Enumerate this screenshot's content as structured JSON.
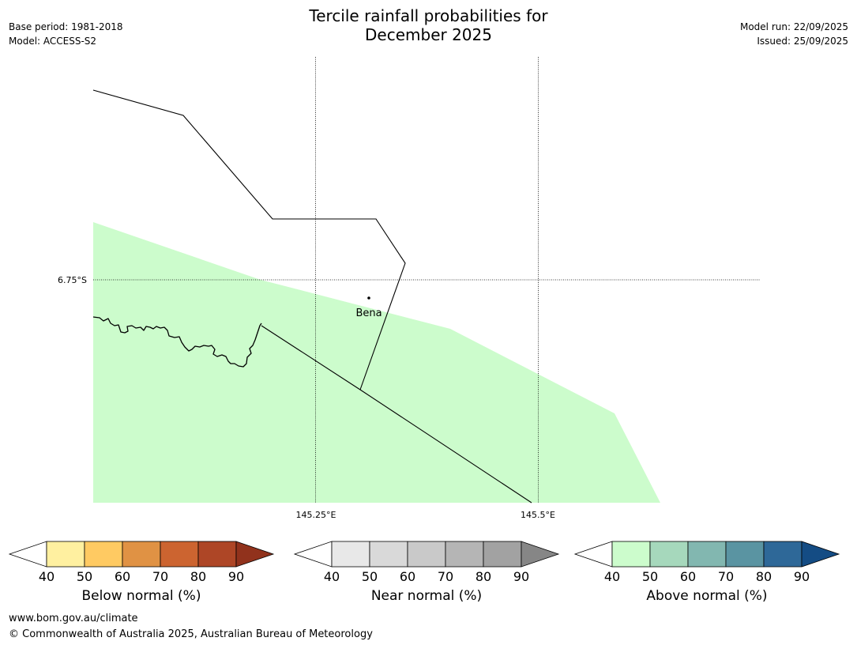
{
  "header": {
    "title_line1": "Tercile rainfall probabilities for",
    "title_line2": "December 2025",
    "base_period": "Base period: 1981-2018",
    "model": "Model: ACCESS-S2",
    "model_run": "Model run: 22/09/2025",
    "issued": "Issued: 25/09/2025"
  },
  "map": {
    "lat_label": "6.75°S",
    "lon_labels": [
      "145.25°E",
      "145.5°E"
    ],
    "place_label": "Bena",
    "fill_color": "#ccfccc"
  },
  "colorbars": [
    {
      "name": "below",
      "title": "Below normal (%)",
      "ticks": [
        "40",
        "50",
        "60",
        "70",
        "80",
        "90"
      ],
      "colors": [
        "#fff0a0",
        "#ffca62",
        "#e09244",
        "#cc6430",
        "#ae4626"
      ],
      "extend_color": "#91321c"
    },
    {
      "name": "near",
      "title": "Near normal (%)",
      "ticks": [
        "40",
        "50",
        "60",
        "70",
        "80",
        "90"
      ],
      "colors": [
        "#e8e8e8",
        "#d9d9d9",
        "#c9c9c9",
        "#b5b5b5",
        "#a2a2a2"
      ],
      "extend_color": "#868686"
    },
    {
      "name": "above",
      "title": "Above normal (%)",
      "ticks": [
        "40",
        "50",
        "60",
        "70",
        "80",
        "90"
      ],
      "colors": [
        "#ccfccc",
        "#a6d8bc",
        "#82b7b0",
        "#5a94a2",
        "#2e6898"
      ],
      "extend_color": "#144c84"
    }
  ],
  "footer": {
    "url": "www.bom.gov.au/climate",
    "copyright": "© Commonwealth of Australia 2025, Australian Bureau of Meteorology"
  }
}
